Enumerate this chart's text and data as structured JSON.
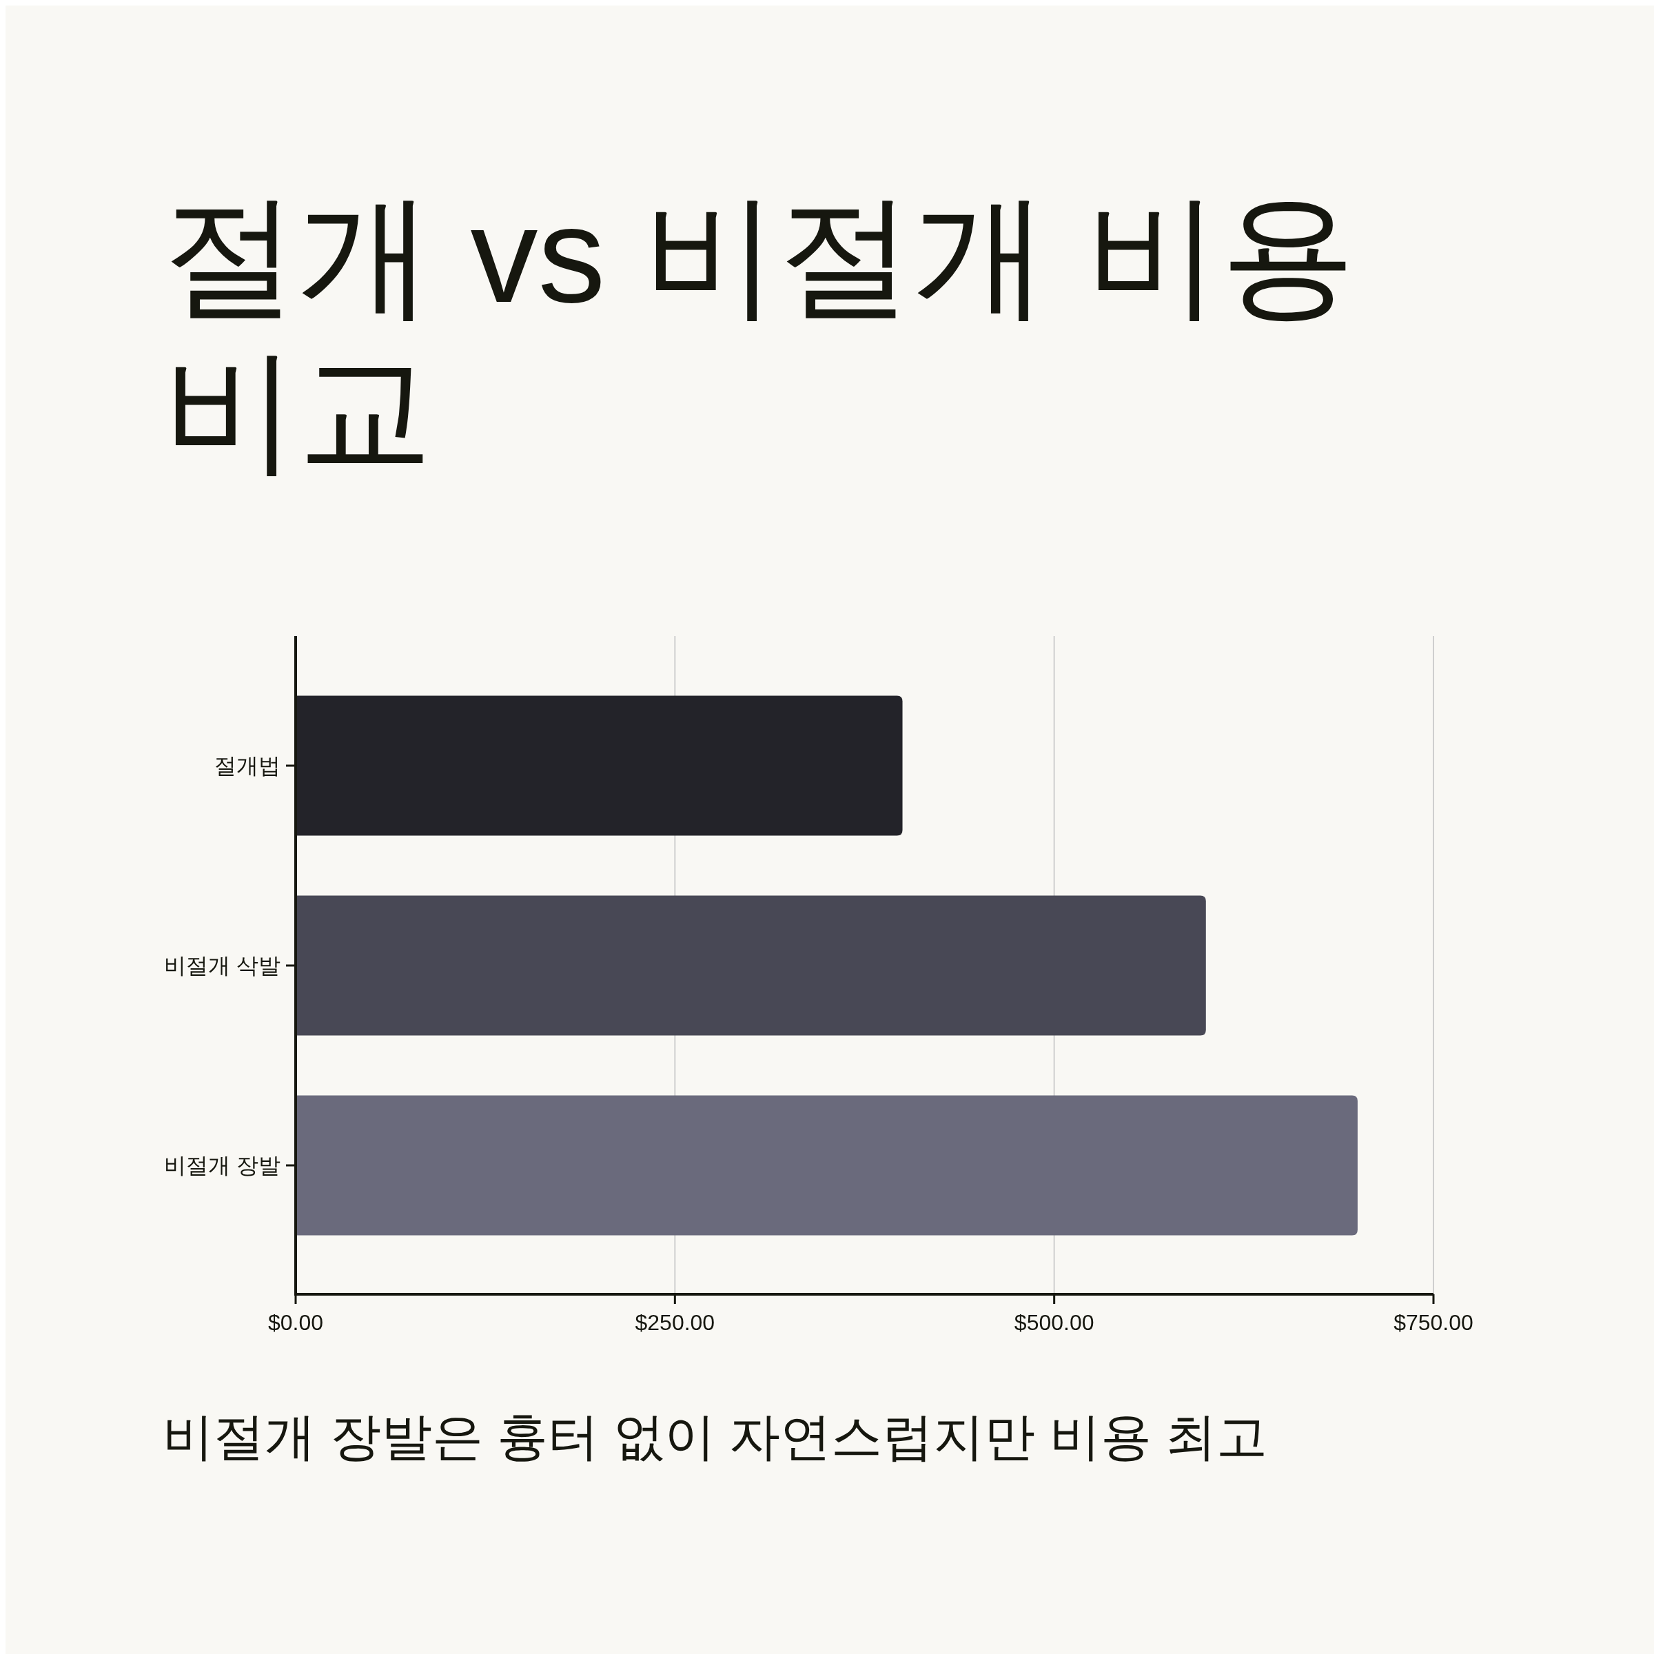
{
  "chart_data": {
    "type": "bar",
    "title": "절개 vs 비절개 비용 비교",
    "orientation": "horizontal",
    "categories": [
      "절개법",
      "비절개 삭발",
      "비절개 장발"
    ],
    "values": [
      400,
      600,
      700
    ],
    "colors": [
      "#232329",
      "#484855",
      "#6a6a7c"
    ],
    "xlim": [
      0,
      750
    ],
    "xticks": [
      {
        "value": 0,
        "label": "$0.00"
      },
      {
        "value": 250,
        "label": "$250.00"
      },
      {
        "value": 500,
        "label": "$500.00"
      },
      {
        "value": 750,
        "label": "$750.00"
      }
    ],
    "grid": "x",
    "annotations": [
      "비절개 장발은 흉터 없이 자연스럽지만 비용 최고"
    ]
  }
}
